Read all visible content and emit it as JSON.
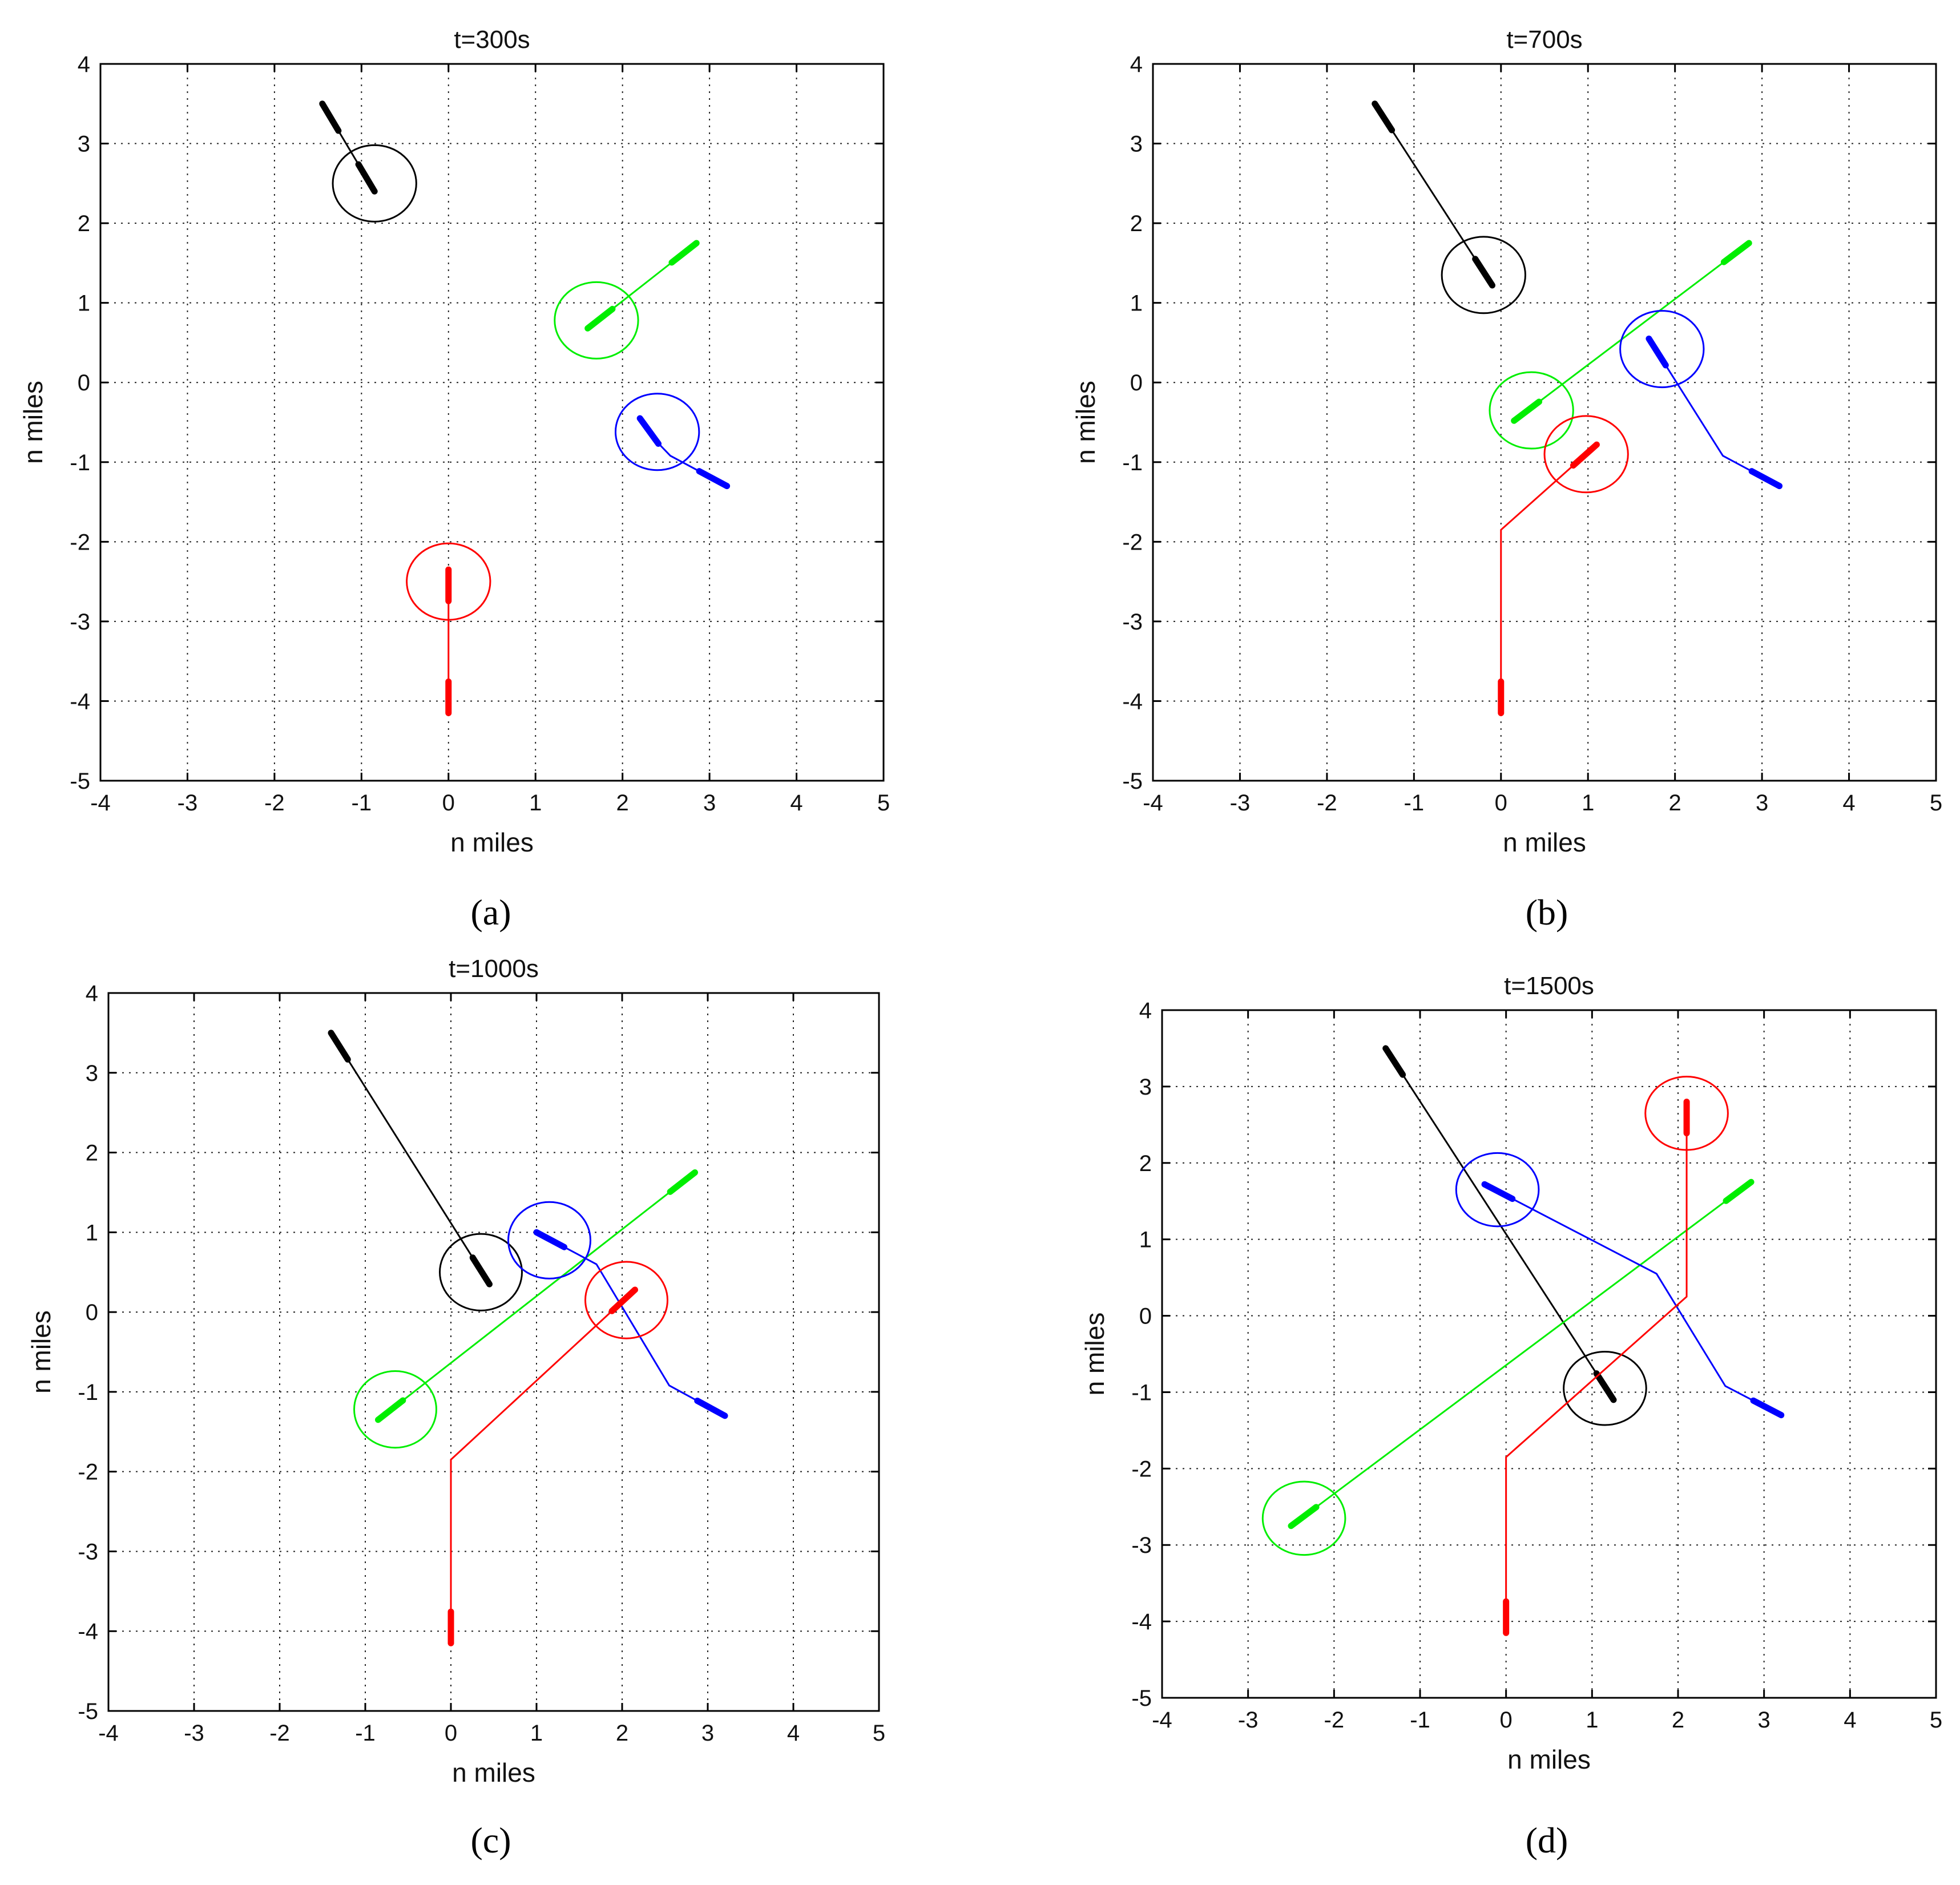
{
  "colors": {
    "black": "#000000",
    "green": "#00ee00",
    "blue": "#0000ff",
    "red": "#ff0000"
  },
  "chart_data": [
    {
      "type": "line",
      "panel": "a",
      "caption": "(a)",
      "title": "t=300s",
      "xlabel": "n miles",
      "ylabel": "n miles",
      "xlim": [
        -4,
        5
      ],
      "ylim": [
        -5,
        4
      ],
      "xticks": [
        -4,
        -3,
        -2,
        -1,
        0,
        1,
        2,
        3,
        4,
        5
      ],
      "yticks": [
        -5,
        -4,
        -3,
        -2,
        -1,
        0,
        1,
        2,
        3,
        4
      ],
      "grid": true,
      "series": [
        {
          "color": "black",
          "path": [
            [
              -1.45,
              3.5
            ],
            [
              -0.85,
              2.4
            ]
          ],
          "circle": [
            -0.85,
            2.5
          ]
        },
        {
          "color": "green",
          "path": [
            [
              2.85,
              1.75
            ],
            [
              1.6,
              0.68
            ]
          ],
          "circle": [
            1.7,
            0.78
          ]
        },
        {
          "color": "blue",
          "path": [
            [
              3.2,
              -1.3
            ],
            [
              2.55,
              -0.92
            ],
            [
              2.4,
              -0.75
            ],
            [
              2.2,
              -0.45
            ]
          ],
          "circle": [
            2.4,
            -0.62
          ]
        },
        {
          "color": "red",
          "path": [
            [
              0,
              -4.15
            ],
            [
              0,
              -2.35
            ]
          ],
          "circle": [
            0,
            -2.5
          ]
        }
      ]
    },
    {
      "type": "line",
      "panel": "b",
      "caption": "(b)",
      "title": "t=700s",
      "xlabel": "n miles",
      "ylabel": "n miles",
      "xlim": [
        -4,
        5
      ],
      "ylim": [
        -5,
        4
      ],
      "xticks": [
        -4,
        -3,
        -2,
        -1,
        0,
        1,
        2,
        3,
        4,
        5
      ],
      "yticks": [
        -5,
        -4,
        -3,
        -2,
        -1,
        0,
        1,
        2,
        3,
        4
      ],
      "grid": true,
      "series": [
        {
          "color": "black",
          "path": [
            [
              -1.45,
              3.5
            ],
            [
              -0.1,
              1.22
            ]
          ],
          "circle": [
            -0.2,
            1.35
          ]
        },
        {
          "color": "green",
          "path": [
            [
              2.85,
              1.75
            ],
            [
              0.15,
              -0.48
            ]
          ],
          "circle": [
            0.35,
            -0.35
          ]
        },
        {
          "color": "blue",
          "path": [
            [
              3.2,
              -1.3
            ],
            [
              2.55,
              -0.92
            ],
            [
              1.7,
              0.55
            ]
          ],
          "circle": [
            1.85,
            0.42
          ]
        },
        {
          "color": "red",
          "path": [
            [
              0,
              -4.15
            ],
            [
              0,
              -1.85
            ],
            [
              1.1,
              -0.78
            ]
          ],
          "circle": [
            0.98,
            -0.9
          ]
        }
      ]
    },
    {
      "type": "line",
      "panel": "c",
      "caption": "(c)",
      "title": "t=1000s",
      "xlabel": "n miles",
      "ylabel": "n miles",
      "xlim": [
        -4,
        5
      ],
      "ylim": [
        -5,
        4
      ],
      "xticks": [
        -4,
        -3,
        -2,
        -1,
        0,
        1,
        2,
        3,
        4,
        5
      ],
      "yticks": [
        -5,
        -4,
        -3,
        -2,
        -1,
        0,
        1,
        2,
        3,
        4
      ],
      "grid": true,
      "series": [
        {
          "color": "black",
          "path": [
            [
              -1.4,
              3.5
            ],
            [
              0.45,
              0.35
            ]
          ],
          "circle": [
            0.35,
            0.5
          ]
        },
        {
          "color": "green",
          "path": [
            [
              2.85,
              1.75
            ],
            [
              -0.85,
              -1.35
            ]
          ],
          "circle": [
            -0.65,
            -1.22
          ]
        },
        {
          "color": "blue",
          "path": [
            [
              3.2,
              -1.3
            ],
            [
              2.55,
              -0.92
            ],
            [
              1.7,
              0.6
            ],
            [
              1.0,
              1.0
            ]
          ],
          "circle": [
            1.15,
            0.9
          ]
        },
        {
          "color": "red",
          "path": [
            [
              0,
              -4.15
            ],
            [
              0,
              -1.85
            ],
            [
              2.15,
              0.28
            ]
          ],
          "circle": [
            2.05,
            0.15
          ]
        }
      ]
    },
    {
      "type": "line",
      "panel": "d",
      "caption": "(d)",
      "title": "t=1500s",
      "xlabel": "n miles",
      "ylabel": "n miles",
      "xlim": [
        -4,
        5
      ],
      "ylim": [
        -5,
        4
      ],
      "xticks": [
        -4,
        -3,
        -2,
        -1,
        0,
        1,
        2,
        3,
        4,
        5
      ],
      "yticks": [
        -5,
        -4,
        -3,
        -2,
        -1,
        0,
        1,
        2,
        3,
        4
      ],
      "grid": true,
      "series": [
        {
          "color": "black",
          "path": [
            [
              -1.4,
              3.5
            ],
            [
              1.25,
              -1.1
            ]
          ],
          "circle": [
            1.15,
            -0.95
          ]
        },
        {
          "color": "green",
          "path": [
            [
              2.85,
              1.75
            ],
            [
              -2.5,
              -2.75
            ]
          ],
          "circle": [
            -2.35,
            -2.65
          ]
        },
        {
          "color": "blue",
          "path": [
            [
              3.2,
              -1.3
            ],
            [
              2.55,
              -0.92
            ],
            [
              1.75,
              0.55
            ],
            [
              -0.25,
              1.72
            ]
          ],
          "circle": [
            -0.1,
            1.65
          ]
        },
        {
          "color": "red",
          "path": [
            [
              0,
              -4.15
            ],
            [
              0,
              -1.85
            ],
            [
              2.1,
              0.25
            ],
            [
              2.1,
              2.8
            ]
          ],
          "circle": [
            2.1,
            2.65
          ]
        }
      ]
    }
  ]
}
